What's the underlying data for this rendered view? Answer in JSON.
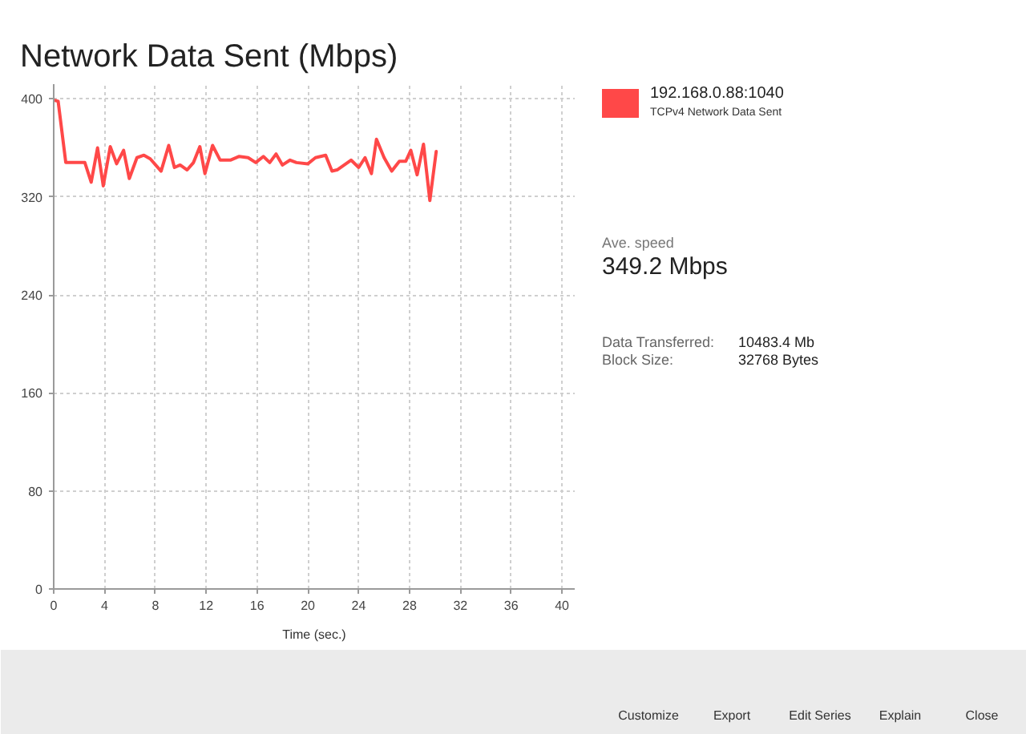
{
  "chart_data": {
    "type": "line",
    "title": "Network Data Sent (Mbps)",
    "xlabel": "Time (sec.)",
    "x": [
      0,
      0.35,
      0.95,
      2.45,
      2.95,
      3.45,
      3.9,
      4.45,
      4.95,
      5.5,
      5.95,
      6.55,
      7.1,
      7.6,
      8.45,
      9.05,
      9.5,
      9.95,
      10.5,
      11,
      11.5,
      11.9,
      12.5,
      13.1,
      13.9,
      14.6,
      15.3,
      15.9,
      16.5,
      17,
      17.5,
      18,
      18.6,
      19.1,
      20,
      20.6,
      21.4,
      21.9,
      22.3,
      23.4,
      24,
      24.5,
      25,
      25.4,
      26,
      26.6,
      27.2,
      27.7,
      28.1,
      28.6,
      29.1,
      29.6,
      30.1
    ],
    "series": [
      {
        "name": "192.168.0.88:1040",
        "color": "#ff4848",
        "values": [
          399,
          398,
          348,
          348,
          332,
          360,
          329,
          361,
          347,
          358,
          335,
          352,
          354,
          351,
          341,
          362,
          344,
          346,
          342,
          348,
          361,
          339,
          362,
          350,
          350,
          353,
          352,
          348,
          353,
          348,
          355,
          346,
          350,
          348,
          347,
          352,
          354,
          341,
          342,
          350,
          344,
          352,
          339,
          367,
          352,
          341,
          349,
          349,
          358,
          338,
          363,
          317,
          357
        ]
      }
    ],
    "xlim": [
      0,
      41
    ],
    "ylim": [
      0,
      412
    ],
    "xticks": [
      0,
      4,
      8,
      12,
      16,
      20,
      24,
      28,
      32,
      36,
      40
    ],
    "yticks": [
      0,
      80,
      160,
      240,
      320,
      400
    ],
    "grid": true,
    "legend": "top right",
    "annotations": [
      "TCPv4 Network Data Sent",
      "Ave. speed",
      "349.2 Mbps",
      "Data Transferred:",
      "10483.4 Mb",
      "Block Size:",
      "32768 Bytes",
      "Customize",
      "Export",
      "Edit Series",
      "Explain",
      "Close"
    ]
  }
}
